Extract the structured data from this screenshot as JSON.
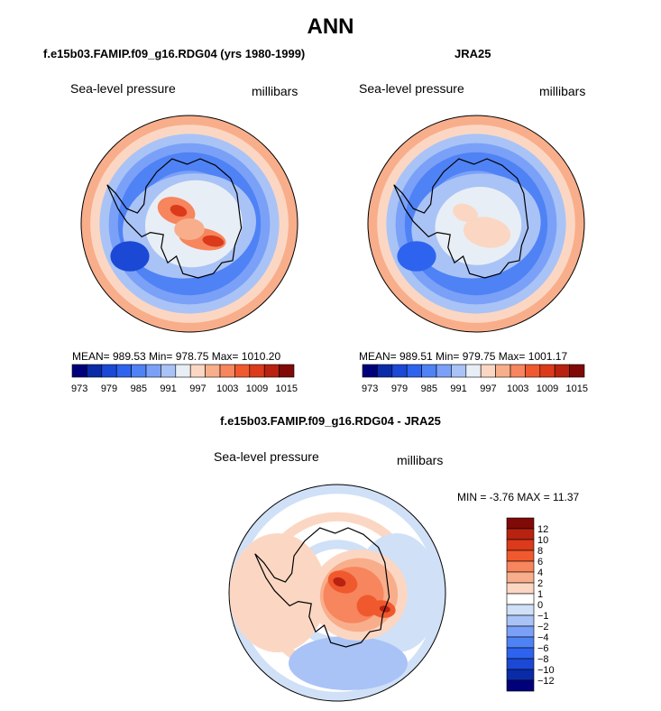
{
  "main_title": "ANN",
  "panels": [
    {
      "title": "f.e15b03.FAMIP.f09_g16.RDG04 (yrs 1980-1999)",
      "variable": "Sea-level pressure",
      "units": "millibars",
      "stats": "MEAN= 989.53  Min= 978.75  Max= 1010.20"
    },
    {
      "title": "JRA25",
      "variable": "Sea-level pressure",
      "units": "millibars",
      "stats": "MEAN= 989.51  Min= 979.75  Max= 1001.17"
    },
    {
      "title": "f.e15b03.FAMIP.f09_g16.RDG04 - JRA25",
      "variable": "Sea-level pressure",
      "units": "millibars",
      "stats": "MIN =   -3.76 MAX =   11.37"
    }
  ],
  "chart_data": [
    {
      "type": "heatmap",
      "title": "f.e15b03.FAMIP.f09_g16.RDG04 (yrs 1980-1999)",
      "projection": "south polar stereographic",
      "variable": "Sea-level pressure",
      "units": "millibars",
      "mean": 989.53,
      "min": 978.75,
      "max": 1010.2,
      "colorbar_levels": [
        973,
        976,
        979,
        982,
        985,
        988,
        991,
        994,
        997,
        1000,
        1003,
        1006,
        1009,
        1012,
        1015
      ],
      "colorbar_tick_labels": [
        "973",
        "979",
        "985",
        "991",
        "997",
        "1003",
        "1009",
        "1015"
      ]
    },
    {
      "type": "heatmap",
      "title": "JRA25",
      "projection": "south polar stereographic",
      "variable": "Sea-level pressure",
      "units": "millibars",
      "mean": 989.51,
      "min": 979.75,
      "max": 1001.17,
      "colorbar_levels": [
        973,
        976,
        979,
        982,
        985,
        988,
        991,
        994,
        997,
        1000,
        1003,
        1006,
        1009,
        1012,
        1015
      ],
      "colorbar_tick_labels": [
        "973",
        "979",
        "985",
        "991",
        "997",
        "1003",
        "1009",
        "1015"
      ]
    },
    {
      "type": "heatmap",
      "title": "f.e15b03.FAMIP.f09_g16.RDG04 - JRA25",
      "projection": "south polar stereographic",
      "variable": "Sea-level pressure",
      "units": "millibars",
      "min": -3.76,
      "max": 11.37,
      "colorbar_levels": [
        12,
        10,
        8,
        6,
        4,
        2,
        1,
        0,
        -1,
        -2,
        -4,
        -6,
        -8,
        -10,
        -12
      ],
      "colorbar_tick_labels": [
        "12",
        "10",
        "8",
        "6",
        "4",
        "2",
        "1",
        "0",
        "−1",
        "−2",
        "−4",
        "−6",
        "−8",
        "−10",
        "−12"
      ]
    }
  ],
  "colors": {
    "abs_palette": [
      "#00007a",
      "#0a2ba8",
      "#1c48d6",
      "#2d63ee",
      "#4f82f5",
      "#7aa1f7",
      "#a9c3f6",
      "#e8eef6",
      "#fbd7c3",
      "#f8ae8b",
      "#f7855d",
      "#f0592e",
      "#db3a1b",
      "#b82211",
      "#7f0a08"
    ],
    "diff_palette": [
      "#7f0a08",
      "#b82211",
      "#db3a1b",
      "#f0592e",
      "#f7855d",
      "#f8ae8b",
      "#fbd7c3",
      "#ffffff",
      "#cfe0f7",
      "#a9c3f6",
      "#7aa1f7",
      "#4f82f5",
      "#2d63ee",
      "#1c48d6",
      "#0a2ba8",
      "#00007a"
    ]
  }
}
